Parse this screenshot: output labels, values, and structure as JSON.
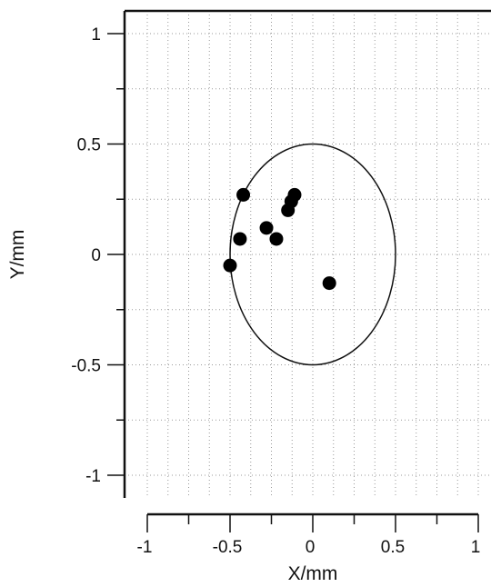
{
  "chart_data": {
    "type": "scatter",
    "xlabel": "X/mm",
    "ylabel": "Y/mm",
    "xlim": [
      -1,
      1
    ],
    "ylim": [
      -1.05,
      1.1
    ],
    "xticks": [
      -1,
      -0.5,
      0,
      0.5,
      1
    ],
    "xtick_labels": [
      "-1",
      "-0.5",
      "0",
      "0.5",
      "1"
    ],
    "yticks": [
      -1,
      -0.5,
      0,
      0.5,
      1
    ],
    "ytick_labels": [
      "-1",
      "-0.5",
      "0",
      "0.5",
      "1"
    ],
    "grid": true,
    "points": [
      {
        "x": -0.42,
        "y": 0.27
      },
      {
        "x": -0.11,
        "y": 0.27
      },
      {
        "x": -0.13,
        "y": 0.24
      },
      {
        "x": -0.15,
        "y": 0.2
      },
      {
        "x": -0.28,
        "y": 0.12
      },
      {
        "x": -0.22,
        "y": 0.07
      },
      {
        "x": -0.44,
        "y": 0.07
      },
      {
        "x": -0.5,
        "y": -0.05
      },
      {
        "x": 0.1,
        "y": -0.13
      }
    ],
    "ellipse": {
      "cx": 0,
      "cy": 0,
      "rx": 0.5,
      "ry": 0.5
    }
  }
}
